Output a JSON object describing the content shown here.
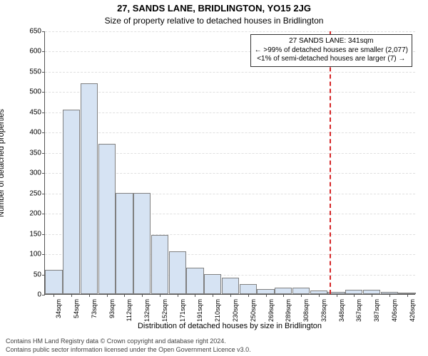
{
  "address": "27, SANDS LANE, BRIDLINGTON, YO15 2JG",
  "subtitle": "Size of property relative to detached houses in Bridlington",
  "chart": {
    "type": "bar",
    "ylabel": "Number of detached properties",
    "xlabel": "Distribution of detached houses by size in Bridlington",
    "ylim_max": 650,
    "ytick_step": 50,
    "categories": [
      "34sqm",
      "54sqm",
      "73sqm",
      "93sqm",
      "112sqm",
      "132sqm",
      "152sqm",
      "171sqm",
      "191sqm",
      "210sqm",
      "230sqm",
      "250sqm",
      "269sqm",
      "289sqm",
      "308sqm",
      "328sqm",
      "348sqm",
      "367sqm",
      "387sqm",
      "406sqm",
      "426sqm"
    ],
    "values": [
      60,
      455,
      520,
      370,
      250,
      250,
      145,
      105,
      65,
      50,
      40,
      25,
      12,
      15,
      15,
      8,
      5,
      10,
      10,
      5,
      2
    ],
    "bar_fill": "#d6e3f3",
    "bar_stroke": "#808080",
    "grid_color": "#e0e0e0",
    "background_color": "#ffffff",
    "ref_index": 16,
    "ref_color": "#d62728",
    "annotation": {
      "line1": "27 SANDS LANE: 341sqm",
      "line2": "← >99% of detached houses are smaller (2,077)",
      "line3": "<1% of semi-detached houses are larger (7) →"
    },
    "title_fontsize": 13,
    "label_fontsize": 11,
    "tick_fontsize": 10
  },
  "footnotes": {
    "l1": "Contains HM Land Registry data © Crown copyright and database right 2024.",
    "l2": "Contains public sector information licensed under the Open Government Licence v3.0."
  }
}
